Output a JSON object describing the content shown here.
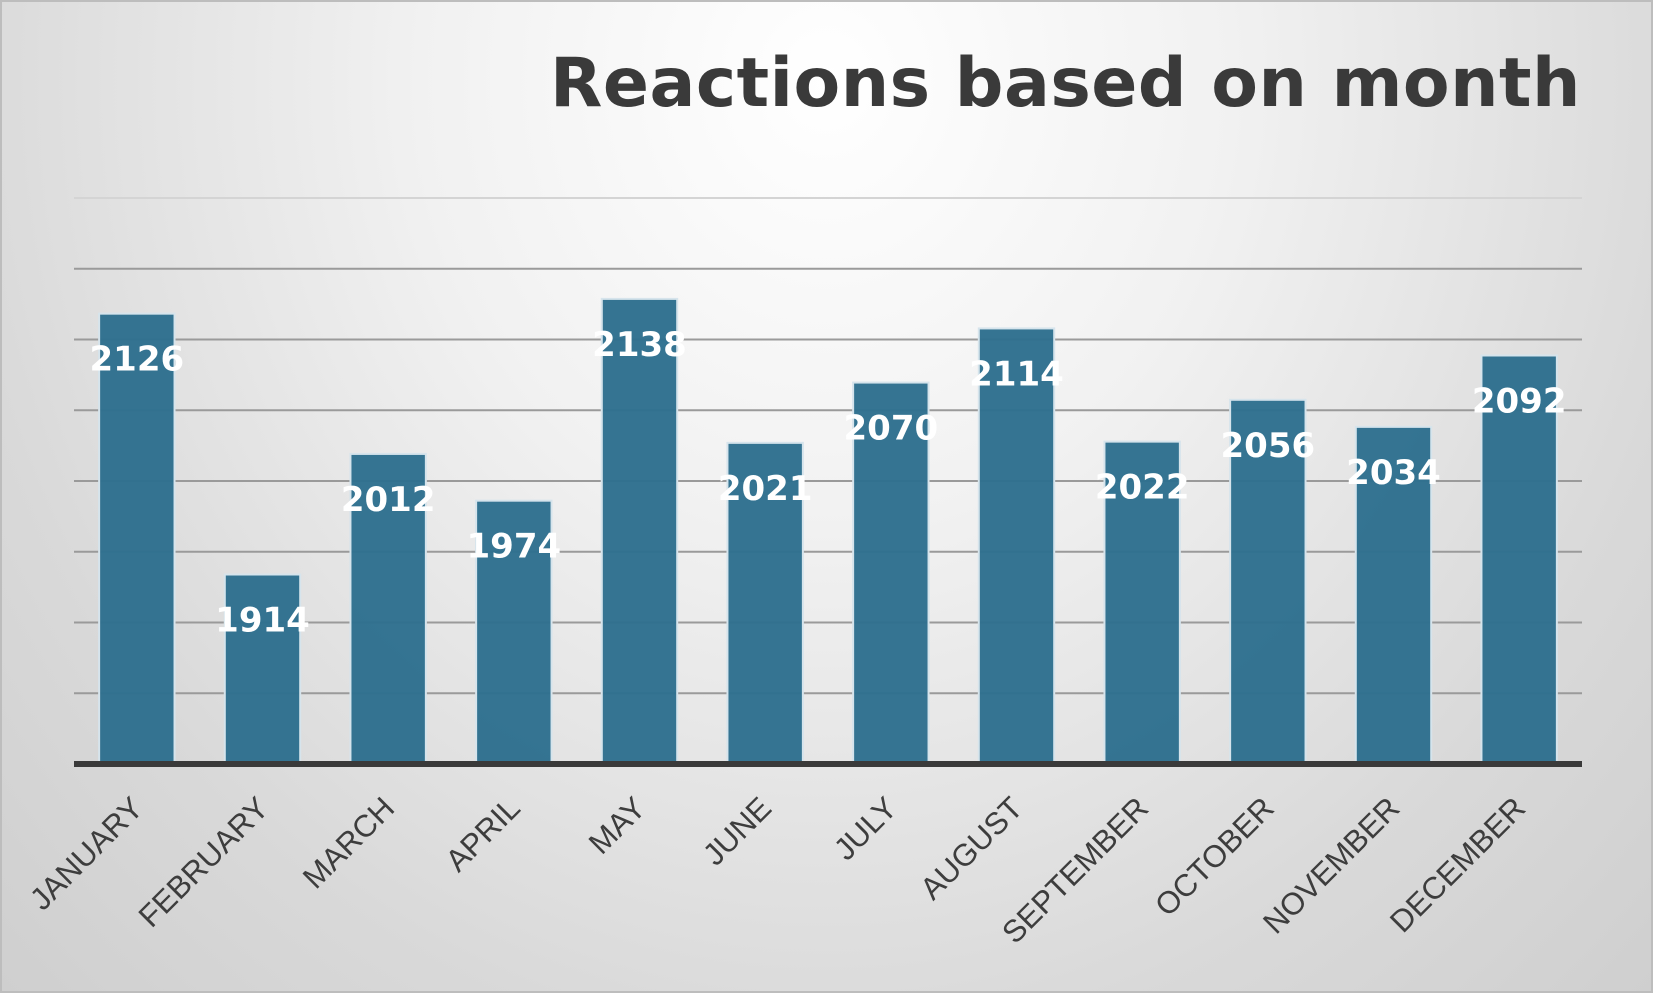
{
  "chart_data": {
    "type": "bar",
    "title": "Reactions based on month",
    "xlabel": "",
    "ylabel": "",
    "categories": [
      "JANUARY",
      "FEBRUARY",
      "MARCH",
      "APRIL",
      "MAY",
      "JUNE",
      "JULY",
      "AUGUST",
      "SEPTEMBER",
      "OCTOBER",
      "NOVEMBER",
      "DECEMBER"
    ],
    "values": [
      2126,
      1914,
      2012,
      1974,
      2138,
      2021,
      2070,
      2114,
      2022,
      2056,
      2034,
      2092
    ],
    "data_labels": [
      "2126",
      "1914",
      "2012",
      "1974",
      "2138",
      "2021",
      "2070",
      "2114",
      "2022",
      "2056",
      "2034",
      "2092"
    ],
    "ylim": [
      1760,
      2220
    ],
    "gridlines": true,
    "bar_color": "#2e6f8e",
    "label_color": "#ffffff"
  }
}
